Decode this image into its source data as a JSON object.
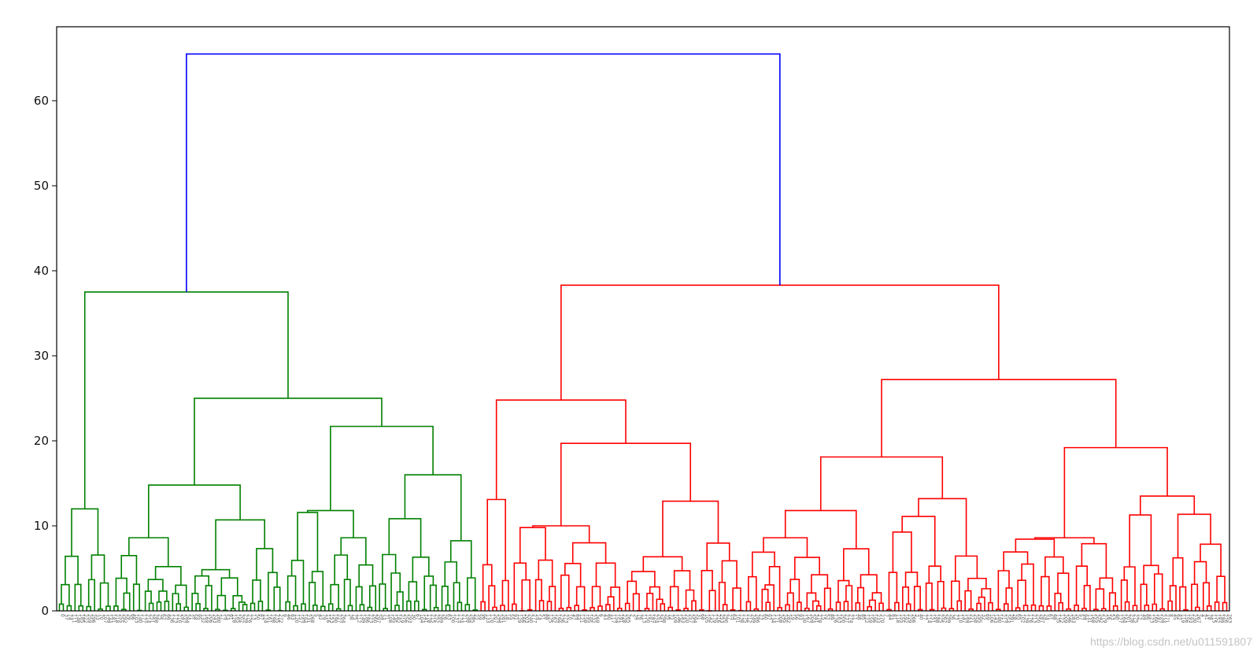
{
  "chart_data": {
    "type": "dendrogram",
    "title": "",
    "xlabel": "",
    "ylabel": "",
    "ylim": [
      0,
      68.7
    ],
    "yticks": [
      0,
      10,
      20,
      30,
      40,
      50,
      60
    ],
    "ytick_labels": [
      "0",
      "10",
      "20",
      "30",
      "40",
      "50",
      "60"
    ],
    "leaf_count": 300,
    "colors": {
      "root": "#0000ff",
      "cluster_a": "#008000",
      "cluster_b": "#ff0000",
      "axes": "#000000"
    },
    "root_merge": {
      "height": 65.5,
      "color": "root"
    },
    "clusters": [
      {
        "name": "cluster_a",
        "color": "cluster_a",
        "merge_height": 37.5,
        "subtrees": [
          {
            "name": "a1",
            "merge_height": 12.0,
            "leaves": 14
          },
          {
            "name": "a2",
            "merge_height": 25.0,
            "parts": [
              {
                "name": "a2a",
                "merge_height": 14.8,
                "leaves": 44,
                "inner": [
                  8.6,
                  10.7,
                  6.5,
                  5.2
                ]
              },
              {
                "name": "a2b",
                "merge_height": 21.7,
                "leaves": 50,
                "inner": [
                  11.8,
                  16.0,
                  11.7,
                  8.6
                ]
              }
            ]
          }
        ]
      },
      {
        "name": "cluster_b",
        "color": "cluster_b",
        "merge_height": 38.3,
        "subtrees": [
          {
            "name": "b1",
            "merge_height": 24.8,
            "parts": [
              {
                "name": "b1a",
                "merge_height": 13.1,
                "leaves": 8
              },
              {
                "name": "b1b",
                "merge_height": 19.7,
                "leaves": 60,
                "inner": [
                  10.0,
                  12.9,
                  10.9,
                  8.0
                ]
              }
            ]
          },
          {
            "name": "b2",
            "merge_height": 27.2,
            "parts": [
              {
                "name": "b2a",
                "merge_height": 18.1,
                "leaves": 64,
                "inner": [
                  11.8,
                  13.2,
                  8.6,
                  7.3
                ]
              },
              {
                "name": "b2b",
                "merge_height": 19.2,
                "leaves": 60,
                "inner": [
                  8.6,
                  13.5,
                  10.7,
                  7.9
                ]
              }
            ]
          }
        ]
      }
    ]
  },
  "watermark": "https://blog.csdn.net/u011591807"
}
